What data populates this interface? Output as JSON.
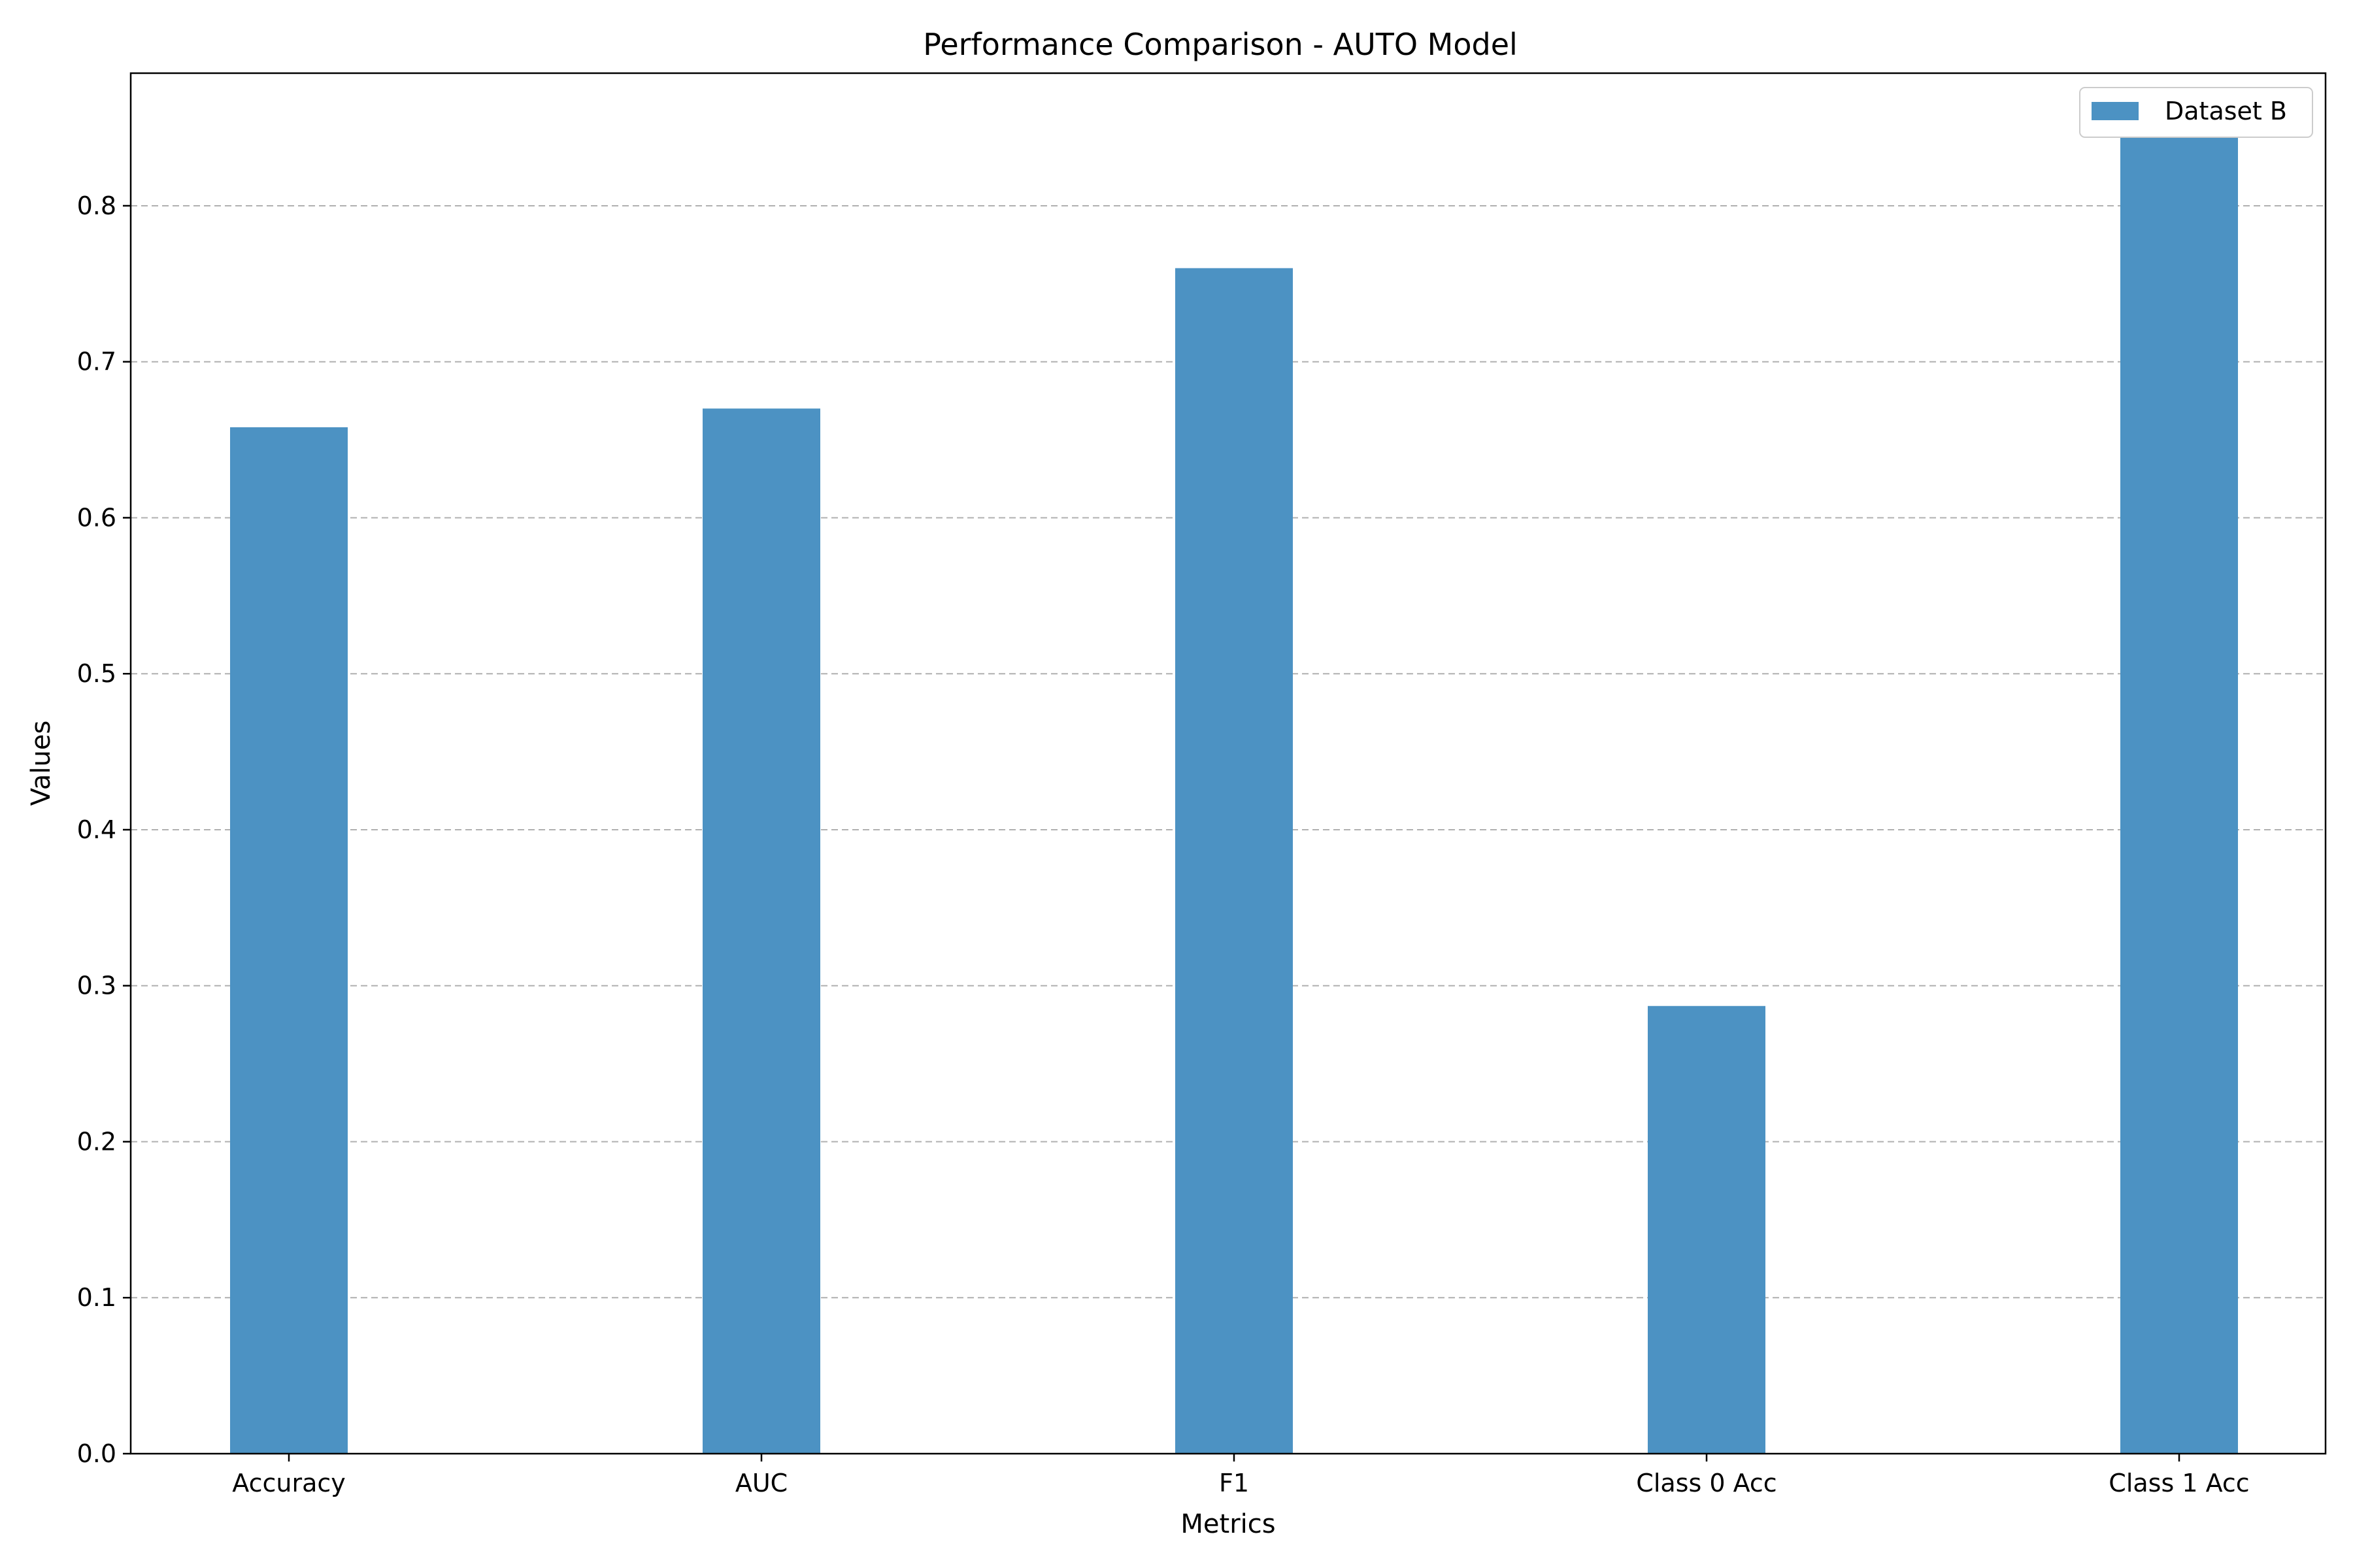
{
  "chart_data": {
    "type": "bar",
    "title": "Performance Comparison - AUTO Model",
    "xlabel": "Metrics",
    "ylabel": "Values",
    "categories": [
      "Accuracy",
      "AUC",
      "F1",
      "Class 0 Acc",
      "Class 1 Acc"
    ],
    "series": [
      {
        "name": "Dataset B",
        "values": [
          0.658,
          0.67,
          0.76,
          0.287,
          0.845
        ],
        "color": "#4c92c3"
      }
    ],
    "ylim": [
      0.0,
      0.885
    ],
    "yticks": [
      "0.0",
      "0.1",
      "0.2",
      "0.3",
      "0.4",
      "0.5",
      "0.6",
      "0.7",
      "0.8"
    ],
    "grid": "y-dashed",
    "legend_position": "top-right"
  }
}
